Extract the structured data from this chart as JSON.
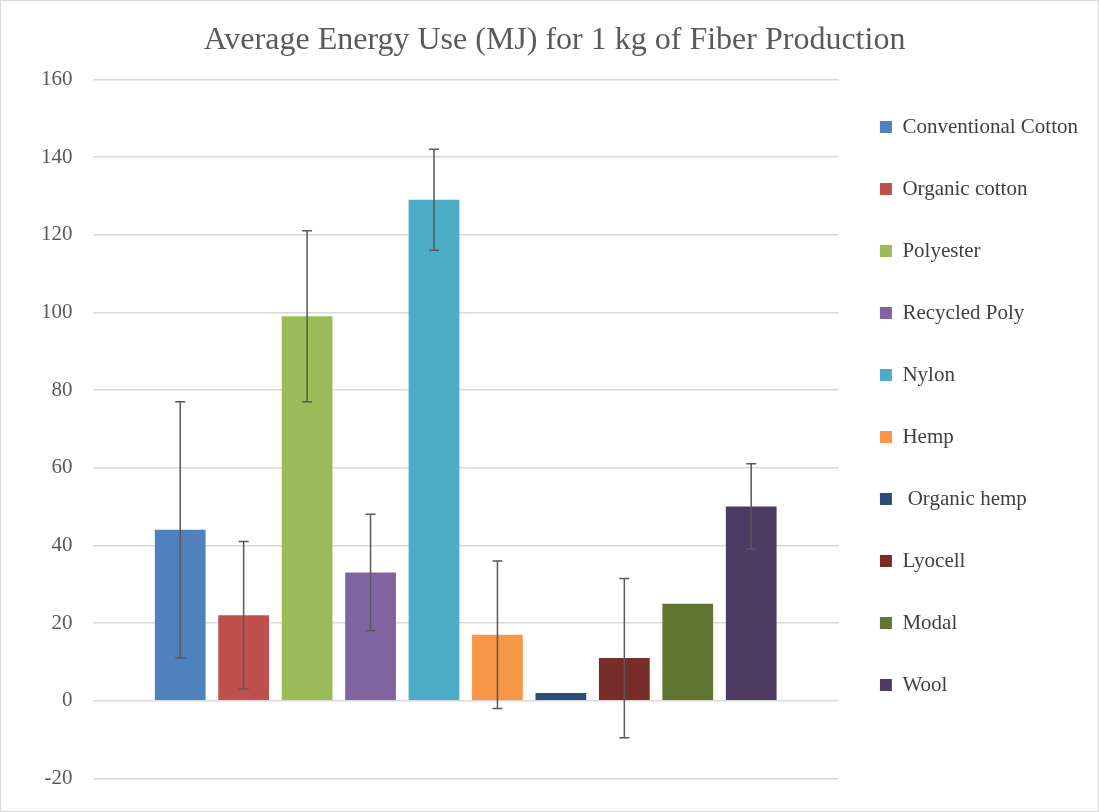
{
  "chart_data": {
    "type": "bar",
    "title": "Average Energy Use (MJ) for 1 kg of Fiber Production",
    "categories": [
      null
    ],
    "series": [
      {
        "name": "Conventional Cotton",
        "color": "#4f81bd",
        "values": [
          44
        ],
        "errors": [
          33
        ]
      },
      {
        "name": "Organic cotton",
        "color": "#c0504d",
        "values": [
          22
        ],
        "errors": [
          19
        ]
      },
      {
        "name": "Polyester",
        "color": "#9bbb59",
        "values": [
          99
        ],
        "errors": [
          22
        ]
      },
      {
        "name": "Recycled Poly",
        "color": "#8064a2",
        "values": [
          33
        ],
        "errors": [
          15
        ]
      },
      {
        "name": "Nylon",
        "color": "#4bacc6",
        "values": [
          129
        ],
        "errors": [
          13
        ]
      },
      {
        "name": "Hemp",
        "color": "#f79646",
        "values": [
          17
        ],
        "errors": [
          19
        ]
      },
      {
        "name": " Organic hemp",
        "color": "#2c4d75",
        "values": [
          2
        ]
      },
      {
        "name": "Lyocell",
        "color": "#772c2a",
        "values": [
          11
        ],
        "errors": [
          20.5
        ]
      },
      {
        "name": "Modal",
        "color": "#5f7530",
        "values": [
          25
        ]
      },
      {
        "name": "Wool",
        "color": "#4d3b62",
        "values": [
          50
        ],
        "errors": [
          11
        ]
      }
    ],
    "ylim": [
      -20,
      160
    ],
    "yticks": [
      -20,
      0,
      20,
      40,
      60,
      80,
      100,
      120,
      140,
      160
    ],
    "grid": "y",
    "legend": "right"
  }
}
